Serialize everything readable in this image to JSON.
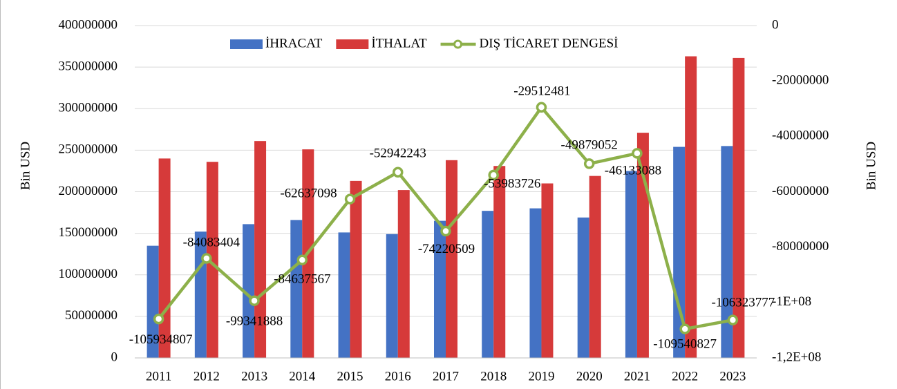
{
  "chart_data": {
    "type": "bar_line",
    "categories": [
      "2011",
      "2012",
      "2013",
      "2014",
      "2015",
      "2016",
      "2017",
      "2018",
      "2019",
      "2020",
      "2021",
      "2022",
      "2023"
    ],
    "series": [
      {
        "name": "İHRACAT",
        "color": "#4472c4",
        "values": [
          135000000,
          152000000,
          161000000,
          166000000,
          151000000,
          149000000,
          165000000,
          177000000,
          180000000,
          169000000,
          225000000,
          254000000,
          255000000
        ]
      },
      {
        "name": "İTHALAT",
        "color": "#d63a3a",
        "values": [
          240000000,
          236000000,
          261000000,
          251000000,
          213000000,
          202000000,
          238000000,
          231000000,
          210000000,
          219000000,
          271000000,
          363000000,
          361000000
        ]
      },
      {
        "name": "DIŞ TİCARET DENGESİ",
        "color": "#8db04a",
        "axis": "y2",
        "values": [
          -105934807,
          -84083404,
          -99341888,
          -84637567,
          -62637098,
          -52942243,
          -74220509,
          -53983726,
          -29512481,
          -49879052,
          -46133088,
          -109540827,
          -106323777
        ]
      }
    ],
    "ylabel": "Bin USD",
    "y2label": "Bin USD",
    "ylim": [
      0,
      400000000
    ],
    "yticks": [
      0,
      50000000,
      100000000,
      150000000,
      200000000,
      250000000,
      300000000,
      350000000,
      400000000
    ],
    "y2lim": [
      -120000000,
      0
    ],
    "y2ticks": [
      {
        "value": -120000000,
        "label": "-1,2E+08"
      },
      {
        "value": -100000000,
        "label": "-1E+08"
      },
      -80000000,
      -60000000,
      -40000000,
      -20000000,
      0
    ],
    "legend": "top"
  }
}
